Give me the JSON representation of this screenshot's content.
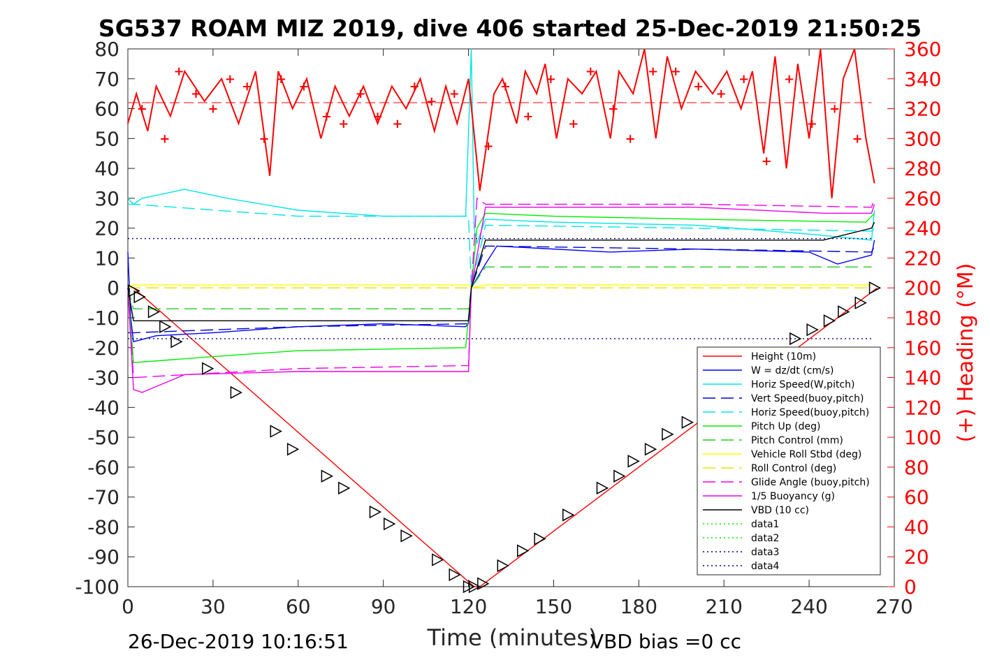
{
  "chart_data": {
    "type": "line",
    "title": "SG537 ROAM MIZ 2019, dive 406 started 25-Dec-2019 21:50:25",
    "xlabel": "Time (minutes)",
    "ylabel_left": "",
    "ylabel_right": "(+) Heading (°M)",
    "xlim": [
      0,
      270
    ],
    "ylim_left": [
      -100,
      80
    ],
    "ylim_right": [
      0,
      360
    ],
    "xticks": [
      0,
      30,
      60,
      90,
      120,
      150,
      180,
      210,
      240,
      270
    ],
    "yticks_left": [
      -100,
      -90,
      -80,
      -70,
      -60,
      -50,
      -40,
      -30,
      -20,
      -10,
      0,
      10,
      20,
      30,
      40,
      50,
      60,
      70,
      80
    ],
    "yticks_right": [
      0,
      20,
      40,
      60,
      80,
      100,
      120,
      140,
      160,
      180,
      200,
      220,
      240,
      260,
      280,
      300,
      320,
      340,
      360
    ],
    "grid": false,
    "legend_position": "bottom-right",
    "footer_left": "26-Dec-2019 10:16:51",
    "footer_right": "VBD bias =0 cc",
    "heading_line": 324,
    "series": [
      {
        "name": "Height (10m)",
        "color": "#ff0000",
        "style": "solid",
        "x": [
          0,
          2,
          122,
          124,
          264
        ],
        "y": [
          0,
          0,
          -100,
          -100,
          0
        ]
      },
      {
        "name": "W = dz/dt (cm/s)",
        "color": "#0000ff",
        "style": "solid",
        "x": [
          0,
          1,
          2,
          10,
          30,
          60,
          90,
          119,
          120,
          121,
          126,
          130,
          170,
          200,
          240,
          250,
          262,
          263
        ],
        "y": [
          12,
          -10,
          -18,
          -16,
          -15,
          -13,
          -12,
          -13,
          -12,
          0,
          8,
          14,
          12,
          13,
          12,
          8,
          11,
          16
        ]
      },
      {
        "name": "Horiz Speed(W,pitch)",
        "color": "#00e5e5",
        "style": "solid",
        "x": [
          0,
          2,
          5,
          20,
          35,
          60,
          90,
          119,
          121,
          122,
          123,
          126,
          150,
          200,
          240,
          262,
          263
        ],
        "y": [
          30,
          28,
          30,
          33,
          30,
          26,
          24,
          24,
          80,
          20,
          15,
          23,
          22,
          21,
          18,
          16,
          26
        ]
      },
      {
        "name": "Vert Speed(buoy,pitch)",
        "color": "#0000cc",
        "style": "dashed",
        "x": [
          0,
          2,
          60,
          120,
          121,
          126,
          200,
          262,
          263
        ],
        "y": [
          -15,
          -15,
          -13,
          -12,
          0,
          14,
          13,
          12,
          14
        ]
      },
      {
        "name": "Horiz Speed(buoy,pitch)",
        "color": "#00e5e5",
        "style": "dashed",
        "x": [
          0,
          2,
          60,
          120,
          121,
          126,
          200,
          262,
          263
        ],
        "y": [
          28,
          28,
          24,
          24,
          0,
          21,
          20,
          19,
          20
        ]
      },
      {
        "name": "Pitch Up (deg)",
        "color": "#00ee00",
        "style": "solid",
        "x": [
          0,
          2,
          30,
          60,
          119,
          121,
          123,
          126,
          150,
          200,
          260,
          263
        ],
        "y": [
          0,
          -25,
          -23,
          -21,
          -20,
          0,
          20,
          25,
          24,
          23,
          22,
          25
        ]
      },
      {
        "name": "Pitch Control (mm)",
        "color": "#22cc22",
        "style": "dashed",
        "x": [
          0,
          2,
          120,
          121,
          126,
          262
        ],
        "y": [
          0,
          -7,
          -7,
          0,
          7,
          7
        ]
      },
      {
        "name": "Vehicle Roll Stbd (deg)",
        "color": "#ffff00",
        "style": "solid",
        "x": [
          0,
          2,
          120,
          121,
          126,
          262
        ],
        "y": [
          0,
          1,
          1,
          0,
          1,
          1
        ]
      },
      {
        "name": "Roll Control (deg)",
        "color": "#e5e500",
        "style": "dashed",
        "x": [
          0,
          2,
          262
        ],
        "y": [
          0,
          0,
          0
        ]
      },
      {
        "name": "Glide Angle (buoy,pitch)",
        "color": "#ee00ee",
        "style": "dashed",
        "x": [
          0,
          2,
          60,
          120,
          121,
          123,
          126,
          200,
          262,
          263
        ],
        "y": [
          0,
          -30,
          -27,
          -26,
          0,
          30,
          28,
          28,
          27,
          30
        ]
      },
      {
        "name": "1/5 Buoyancy (g)",
        "color": "#ee00ee",
        "style": "solid",
        "x": [
          0,
          2,
          5,
          20,
          60,
          120,
          121,
          126,
          200,
          245,
          262,
          263
        ],
        "y": [
          0,
          -34,
          -35,
          -29,
          -28,
          -28,
          0,
          27,
          27,
          25,
          25,
          28
        ]
      },
      {
        "name": "VBD (10 cc)",
        "color": "#000000",
        "style": "solid",
        "x": [
          0,
          2,
          120,
          121,
          126,
          245,
          262,
          263
        ],
        "y": [
          0,
          -11,
          -11,
          0,
          16,
          16,
          20,
          22
        ]
      },
      {
        "name": "data1",
        "color": "#00ee00",
        "style": "dotted",
        "x": [],
        "y": []
      },
      {
        "name": "data2",
        "color": "#00ee00",
        "style": "dotted",
        "x": [],
        "y": []
      },
      {
        "name": "data3",
        "color": "#000088",
        "style": "dotted",
        "x": [
          0,
          262
        ],
        "y": [
          16.5,
          16.5
        ]
      },
      {
        "name": "data4",
        "color": "#000088",
        "style": "dotted",
        "x": [
          0,
          262
        ],
        "y": [
          -17,
          -17
        ]
      }
    ],
    "heading": {
      "name": "Heading",
      "color": "#ff0000",
      "x": [
        0,
        3,
        7,
        10,
        15,
        20,
        27,
        33,
        39,
        45,
        50,
        53,
        58,
        63,
        68,
        73,
        78,
        83,
        88,
        93,
        98,
        103,
        108,
        112,
        116,
        120,
        124,
        129,
        132,
        137,
        140,
        144,
        147,
        151,
        155,
        160,
        165,
        170,
        173,
        178,
        182,
        186,
        190,
        195,
        200,
        206,
        211,
        216,
        220,
        224,
        228,
        232,
        236,
        240,
        244,
        248,
        252,
        256,
        260,
        263
      ],
      "y": [
        310,
        330,
        305,
        335,
        315,
        345,
        325,
        340,
        310,
        345,
        275,
        345,
        320,
        340,
        300,
        335,
        315,
        335,
        310,
        335,
        320,
        340,
        305,
        335,
        310,
        340,
        265,
        330,
        340,
        310,
        345,
        330,
        350,
        300,
        340,
        330,
        345,
        300,
        345,
        330,
        360,
        300,
        355,
        320,
        345,
        330,
        345,
        320,
        345,
        290,
        355,
        280,
        350,
        300,
        360,
        260,
        340,
        360,
        300,
        270
      ],
      "markers_x": [
        5,
        13,
        18,
        24,
        30,
        36,
        42,
        48,
        54,
        62,
        70,
        76,
        82,
        88,
        95,
        101,
        107,
        115,
        127,
        133,
        141,
        149,
        157,
        163,
        171,
        177,
        185,
        193,
        201,
        209,
        217,
        225,
        233,
        241,
        249,
        257
      ],
      "markers_y": [
        320,
        300,
        345,
        330,
        320,
        340,
        335,
        300,
        340,
        335,
        315,
        310,
        330,
        315,
        310,
        335,
        325,
        330,
        295,
        335,
        315,
        340,
        310,
        345,
        320,
        300,
        345,
        345,
        335,
        330,
        340,
        285,
        340,
        310,
        320,
        300
      ]
    },
    "height_markers": {
      "x": [
        2,
        4,
        9,
        13,
        17,
        28,
        38,
        52,
        58,
        70,
        76,
        87,
        92,
        98,
        109,
        115,
        120,
        122,
        125,
        132,
        139,
        145,
        155,
        167,
        173,
        178,
        184,
        190,
        197,
        205,
        213,
        220,
        227,
        235,
        241,
        247,
        252,
        258,
        263
      ],
      "y": [
        -1,
        -3,
        -8,
        -13,
        -18,
        -27,
        -35,
        -48,
        -54,
        -63,
        -67,
        -75,
        -79,
        -83,
        -91,
        -96,
        -100,
        -100,
        -99,
        -93,
        -88,
        -84,
        -76,
        -67,
        -63,
        -58,
        -54,
        -49,
        -45,
        -40,
        -33,
        -29,
        -23,
        -17,
        -14,
        -11,
        -8,
        -5,
        0
      ]
    }
  }
}
